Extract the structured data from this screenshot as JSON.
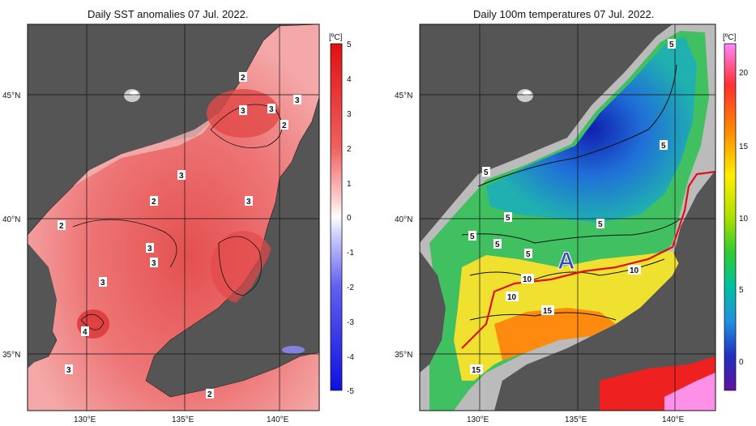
{
  "left_panel": {
    "title": "Daily SST anomalies 07 Jul. 2022.",
    "unit": "[ºC]",
    "colorbar_ticks": [
      "5",
      "4",
      "3",
      "2",
      "1",
      "0",
      "-1",
      "-2",
      "-3",
      "-4",
      "-5"
    ],
    "contour_labels": [
      "2",
      "3",
      "3",
      "3",
      "2",
      "3",
      "2",
      "3",
      "2",
      "3",
      "3",
      "3",
      "4",
      "3",
      "2"
    ]
  },
  "right_panel": {
    "title": "Daily 100m temperatures 07 Jul. 2022.",
    "unit": "[ºC]",
    "colorbar_ticks": [
      "20",
      "15",
      "10",
      "5",
      "0"
    ],
    "contour_labels": [
      "5",
      "5",
      "5",
      "5",
      "5",
      "5",
      "5",
      "5",
      "10",
      "10",
      "10",
      "15",
      "15"
    ],
    "marker": "A"
  },
  "axes": {
    "lat_labels": [
      "45°N",
      "40°N",
      "35°N"
    ],
    "lon_labels": [
      "130°E",
      "135°E",
      "140°E"
    ]
  },
  "colors": {
    "land": "#555555",
    "anomaly_warm": "#e85050",
    "anomaly_cold": "#3030e0"
  }
}
